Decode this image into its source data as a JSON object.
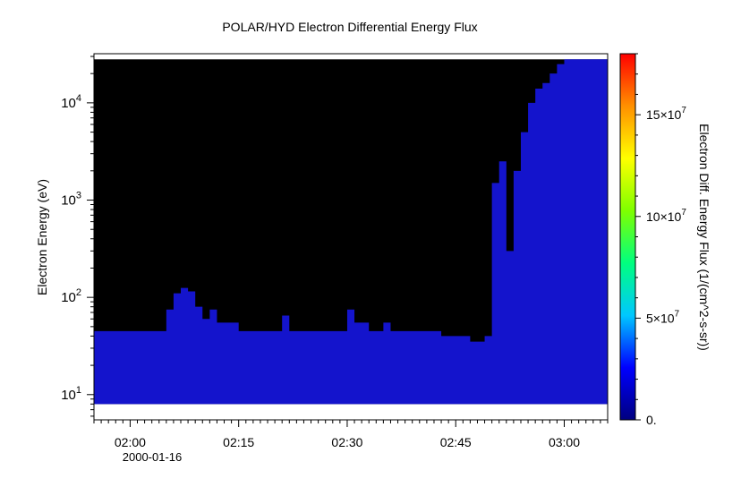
{
  "chart_data": {
    "type": "heatmap",
    "title": "POLAR/HYD  Electron Differential Energy Flux",
    "ylabel": "Electron Energy (eV)",
    "colorbar_label": "Electron Diff. Energy Flux (1/(cm^2-s-sr))",
    "x_axis": {
      "type": "time",
      "date_label": "2000-01-16",
      "range": [
        "01:55",
        "03:06"
      ],
      "ticks": [
        "02:00",
        "02:15",
        "02:30",
        "02:45",
        "03:00"
      ]
    },
    "y_axis": {
      "scale": "log",
      "range": [
        5.5,
        32000
      ],
      "data_range": [
        8,
        28000
      ],
      "ticks": [
        {
          "value": 10,
          "base": "10",
          "exp": "1"
        },
        {
          "value": 100,
          "base": "10",
          "exp": "2"
        },
        {
          "value": 1000,
          "base": "10",
          "exp": "3"
        },
        {
          "value": 10000,
          "base": "10",
          "exp": "4"
        }
      ]
    },
    "colorbar": {
      "range": [
        0,
        180000000
      ],
      "ticks": [
        {
          "value": 0,
          "label": "0."
        },
        {
          "value": 50000000,
          "label": "5×10",
          "exp": "7"
        },
        {
          "value": 100000000,
          "label": "10×10",
          "exp": "7"
        },
        {
          "value": 150000000,
          "label": "15×10",
          "exp": "7"
        }
      ],
      "colors": [
        "#00007f",
        "#0000ff",
        "#00c8ff",
        "#00ff7f",
        "#7fff00",
        "#ffff00",
        "#ff9000",
        "#ff0000"
      ]
    },
    "no_data_color": "#000000",
    "background_flux_color": "#1414cc",
    "upper_energy_envelope": [
      [
        "01:55",
        45
      ],
      [
        "01:58",
        45
      ],
      [
        "02:02",
        45
      ],
      [
        "02:04",
        45
      ],
      [
        "02:05",
        75
      ],
      [
        "02:06",
        110
      ],
      [
        "02:07",
        125
      ],
      [
        "02:08",
        115
      ],
      [
        "02:09",
        80
      ],
      [
        "02:10",
        60
      ],
      [
        "02:11",
        75
      ],
      [
        "02:12",
        55
      ],
      [
        "02:15",
        45
      ],
      [
        "02:20",
        45
      ],
      [
        "02:21",
        65
      ],
      [
        "02:22",
        45
      ],
      [
        "02:26",
        45
      ],
      [
        "02:29",
        45
      ],
      [
        "02:30",
        75
      ],
      [
        "02:31",
        55
      ],
      [
        "02:33",
        45
      ],
      [
        "02:35",
        55
      ],
      [
        "02:36",
        45
      ],
      [
        "02:40",
        45
      ],
      [
        "02:43",
        40
      ],
      [
        "02:47",
        35
      ],
      [
        "02:49",
        40
      ],
      [
        "02:50",
        1500
      ],
      [
        "02:51",
        2500
      ],
      [
        "02:52",
        300
      ],
      [
        "02:53",
        2000
      ],
      [
        "02:54",
        5000
      ],
      [
        "02:55",
        10000
      ],
      [
        "02:56",
        14000
      ],
      [
        "02:57",
        16000
      ],
      [
        "02:58",
        20000
      ],
      [
        "02:59",
        25000
      ],
      [
        "03:00",
        28000
      ],
      [
        "03:06",
        28000
      ]
    ]
  }
}
